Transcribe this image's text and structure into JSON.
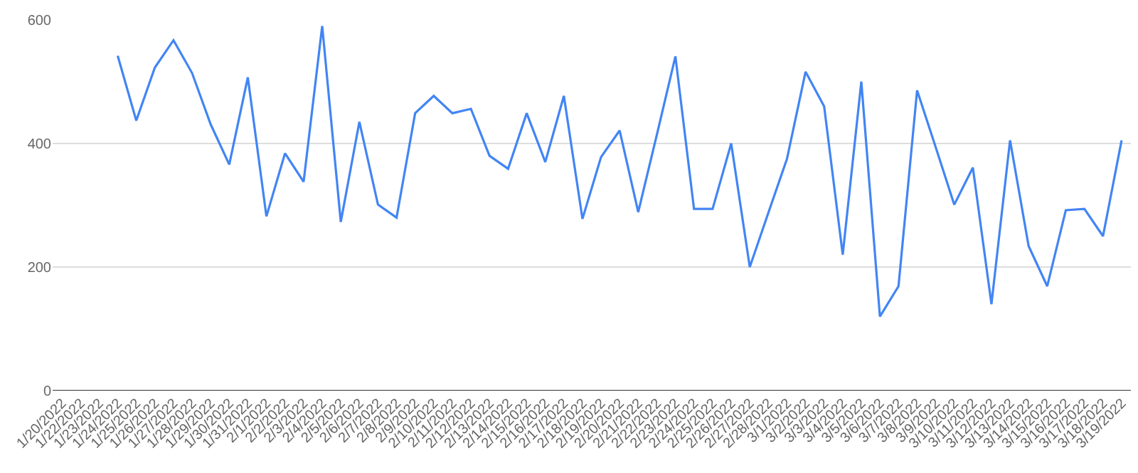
{
  "chart_data": {
    "type": "line",
    "categories": [
      "1/20/2022",
      "1/22/2022",
      "1/23/2022",
      "1/24/2022",
      "1/25/2022",
      "1/26/2022",
      "1/27/2022",
      "1/28/2022",
      "1/29/2022",
      "1/30/2022",
      "1/31/2022",
      "2/1/2022",
      "2/2/2022",
      "2/3/2022",
      "2/4/2022",
      "2/5/2022",
      "2/6/2022",
      "2/7/2022",
      "2/8/2022",
      "2/9/2022",
      "2/10/2022",
      "2/11/2022",
      "2/12/2022",
      "2/13/2022",
      "2/14/2022",
      "2/15/2022",
      "2/16/2022",
      "2/17/2022",
      "2/18/2022",
      "2/19/2022",
      "2/20/2022",
      "2/21/2022",
      "2/22/2022",
      "2/23/2022",
      "2/24/2022",
      "2/25/2022",
      "2/26/2022",
      "2/27/2022",
      "2/28/2022",
      "3/1/2022",
      "3/2/2022",
      "3/3/2022",
      "3/4/2022",
      "3/5/2022",
      "3/6/2022",
      "3/7/2022",
      "3/8/2022",
      "3/9/2022",
      "3/10/2022",
      "3/11/2022",
      "3/12/2022",
      "3/13/2022",
      "3/14/2022",
      "3/15/2022",
      "3/16/2022",
      "3/17/2022",
      "3/18/2022",
      "3/19/2022"
    ],
    "series": [
      {
        "color": "#4285f4",
        "values": [
          null,
          null,
          null,
          542,
          437,
          523,
          567,
          514,
          431,
          366,
          507,
          282,
          384,
          338,
          590,
          273,
          435,
          301,
          280,
          449,
          477,
          449,
          456,
          380,
          359,
          449,
          370,
          477,
          278,
          378,
          421,
          289,
          414,
          541,
          294,
          294,
          400,
          200,
          288,
          375,
          516,
          460,
          220,
          500,
          120,
          169,
          486,
          394,
          301,
          361,
          140,
          405,
          234,
          169,
          292,
          294,
          250,
          405
        ]
      }
    ],
    "ylim": [
      0,
      600
    ],
    "yticks": [
      0,
      200,
      400,
      600
    ],
    "grid": "y",
    "legend": false,
    "marker": "none",
    "line_style": "solid"
  }
}
